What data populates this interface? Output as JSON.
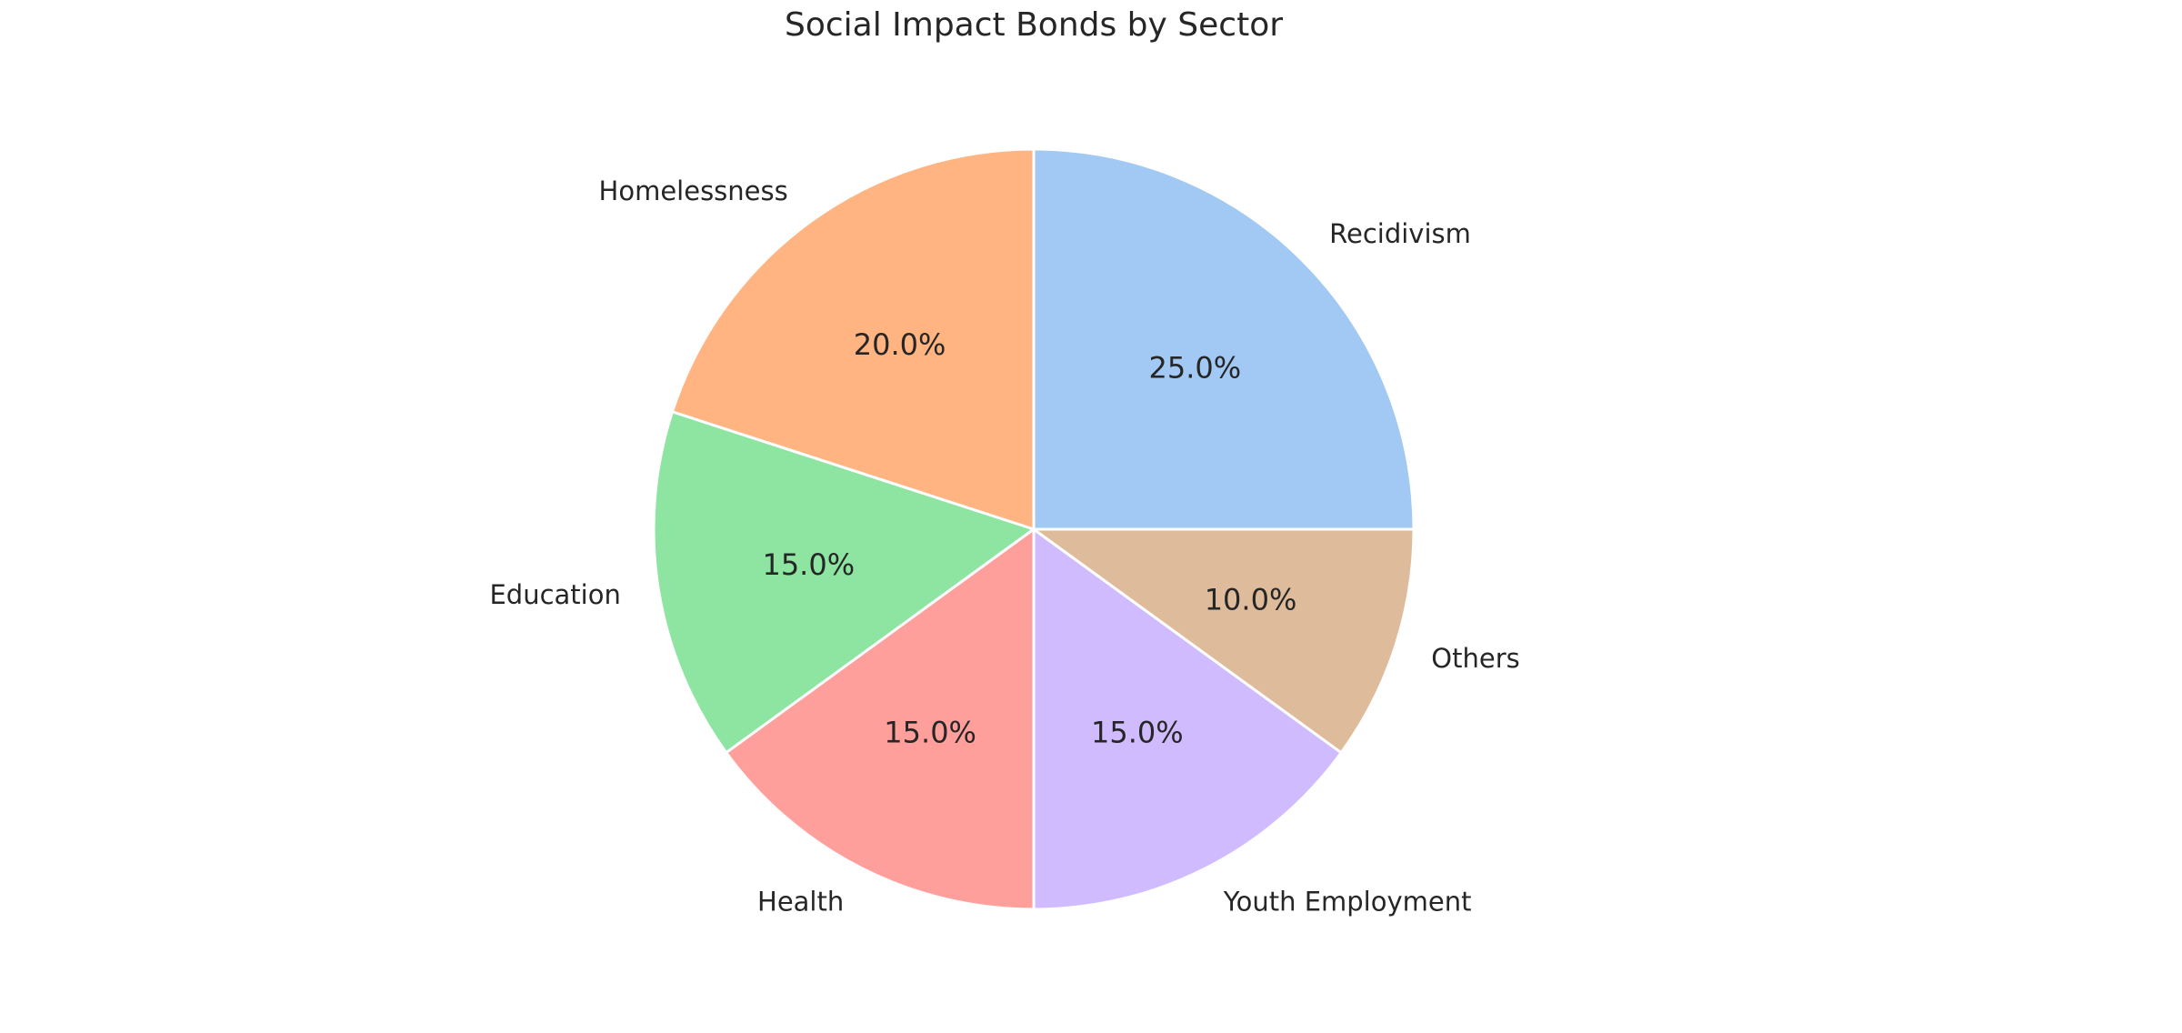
{
  "chart_data": {
    "type": "pie",
    "title": "Social Impact Bonds by Sector",
    "categories": [
      "Recidivism",
      "Homelessness",
      "Education",
      "Health",
      "Youth Employment",
      "Others"
    ],
    "values": [
      25.0,
      20.0,
      15.0,
      15.0,
      15.0,
      10.0
    ],
    "value_labels": [
      "25.0%",
      "20.0%",
      "15.0%",
      "15.0%",
      "15.0%",
      "10.0%"
    ],
    "colors": [
      "#a1c9f4",
      "#ffb482",
      "#8de5a1",
      "#ff9f9b",
      "#d0bbff",
      "#debb9b"
    ],
    "start_angle_deg": 0,
    "direction": "counterclockwise",
    "legend": "none"
  }
}
